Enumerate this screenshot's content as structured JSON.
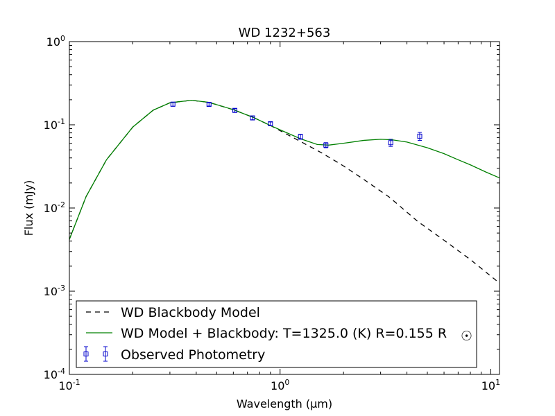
{
  "chart_data": {
    "type": "line",
    "title": "WD 1232+563",
    "xlabel": "Wavelength (μm)",
    "ylabel": "Flux (mJy)",
    "x_scale": "log",
    "y_scale": "log",
    "xlim": [
      0.1,
      11.0
    ],
    "ylim": [
      0.0001,
      1.0
    ],
    "x_ticks": [
      {
        "value": 0.1,
        "base": "10",
        "exp": "-1"
      },
      {
        "value": 1.0,
        "base": "10",
        "exp": "0"
      },
      {
        "value": 10.0,
        "base": "10",
        "exp": "1"
      }
    ],
    "y_ticks": [
      {
        "value": 1.0,
        "base": "10",
        "exp": "0"
      },
      {
        "value": 0.1,
        "base": "10",
        "exp": "-1"
      },
      {
        "value": 0.01,
        "base": "10",
        "exp": "-2"
      },
      {
        "value": 0.001,
        "base": "10",
        "exp": "-3"
      },
      {
        "value": 0.0001,
        "base": "10",
        "exp": "-4"
      }
    ],
    "grid": false,
    "legend_position": "lower-left",
    "series": [
      {
        "name": "WD Blackbody Model",
        "style": "dashed",
        "color": "#000000",
        "x": [
          0.1,
          0.12,
          0.15,
          0.2,
          0.25,
          0.3,
          0.38,
          0.46,
          0.6,
          0.75,
          0.9,
          1.0,
          1.25,
          1.6,
          2.0,
          2.5,
          3.3,
          4.5,
          6.0,
          8.0,
          11.0
        ],
        "y": [
          0.0042,
          0.0137,
          0.038,
          0.094,
          0.15,
          0.184,
          0.197,
          0.186,
          0.152,
          0.122,
          0.098,
          0.085,
          0.063,
          0.045,
          0.032,
          0.022,
          0.0135,
          0.0069,
          0.0041,
          0.0024,
          0.00125
        ]
      },
      {
        "name": "WD Model + Blackbody: T=1325.0 (K) R=0.155 R☉",
        "style": "solid",
        "color": "#008000",
        "x": [
          0.1,
          0.12,
          0.15,
          0.2,
          0.25,
          0.3,
          0.38,
          0.46,
          0.6,
          0.75,
          0.9,
          1.0,
          1.25,
          1.5,
          1.7,
          2.0,
          2.5,
          3.0,
          3.4,
          4.0,
          5.0,
          6.0,
          7.0,
          8.0,
          9.5,
          11.0
        ],
        "y": [
          0.0042,
          0.0137,
          0.038,
          0.094,
          0.15,
          0.184,
          0.197,
          0.186,
          0.152,
          0.122,
          0.098,
          0.087,
          0.068,
          0.058,
          0.057,
          0.06,
          0.065,
          0.067,
          0.066,
          0.062,
          0.053,
          0.045,
          0.038,
          0.033,
          0.027,
          0.023
        ]
      }
    ],
    "points": {
      "name": "Observed Photometry",
      "color": "#0000cc",
      "x": [
        0.31,
        0.46,
        0.61,
        0.74,
        0.9,
        1.25,
        1.65,
        3.35,
        4.6
      ],
      "y": [
        0.177,
        0.176,
        0.149,
        0.121,
        0.103,
        0.072,
        0.057,
        0.061,
        0.073
      ],
      "yerr": [
        0.01,
        0.008,
        0.007,
        0.006,
        0.005,
        0.005,
        0.004,
        0.006,
        0.008
      ]
    }
  },
  "legend": {
    "entries": [
      {
        "label": "WD Blackbody Model"
      },
      {
        "label": "WD Model + Blackbody: T=1325.0 (K) R=0.155 R",
        "sub": "☉"
      },
      {
        "label": "Observed Photometry"
      }
    ]
  }
}
